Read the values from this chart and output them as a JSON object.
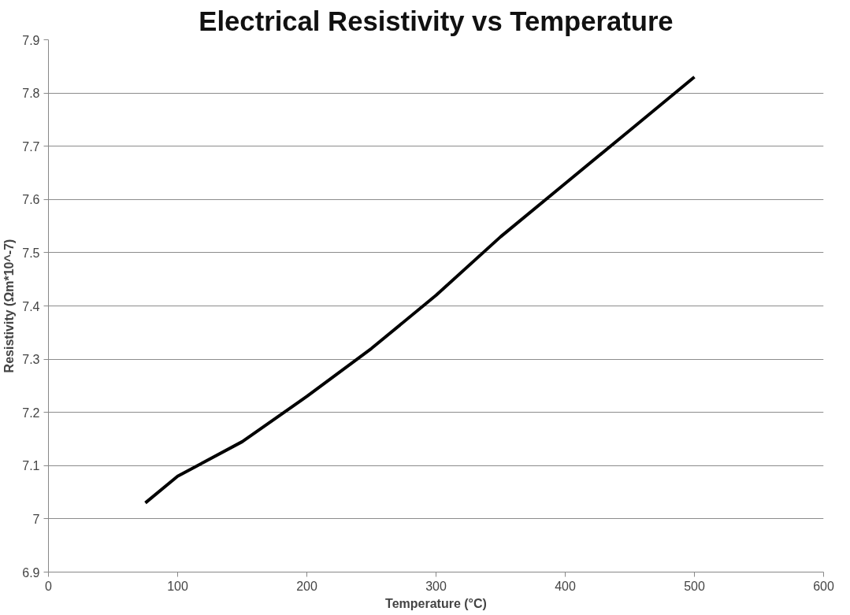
{
  "chart_data": {
    "type": "line",
    "title": "Electrical Resistivity vs Temperature",
    "xlabel": "Temperature (°C)",
    "ylabel": "Resistivity (Ωm*10^-7)",
    "x": [
      75,
      100,
      150,
      200,
      250,
      300,
      350,
      400,
      450,
      500
    ],
    "series": [
      {
        "color": "#000000",
        "values": [
          7.03,
          7.08,
          7.145,
          7.23,
          7.32,
          7.42,
          7.53,
          7.63,
          7.73,
          7.83
        ]
      }
    ],
    "xlim": [
      0,
      600
    ],
    "xticks": [
      0,
      100,
      200,
      300,
      400,
      500,
      600
    ],
    "ylim": [
      6.9,
      7.9
    ],
    "yticks": [
      {
        "value": 6.9,
        "label": "6.9"
      },
      {
        "value": 7.0,
        "label": "7"
      },
      {
        "value": 7.1,
        "label": "7.1"
      },
      {
        "value": 7.2,
        "label": "7.2"
      },
      {
        "value": 7.3,
        "label": "7.3"
      },
      {
        "value": 7.4,
        "label": "7.4"
      },
      {
        "value": 7.5,
        "label": "7.5"
      },
      {
        "value": 7.6,
        "label": "7.6"
      },
      {
        "value": 7.7,
        "label": "7.7"
      },
      {
        "value": 7.8,
        "label": "7.8"
      },
      {
        "value": 7.9,
        "label": "7.9"
      }
    ],
    "grid": "y",
    "marker": "none",
    "line_style": "solid"
  }
}
